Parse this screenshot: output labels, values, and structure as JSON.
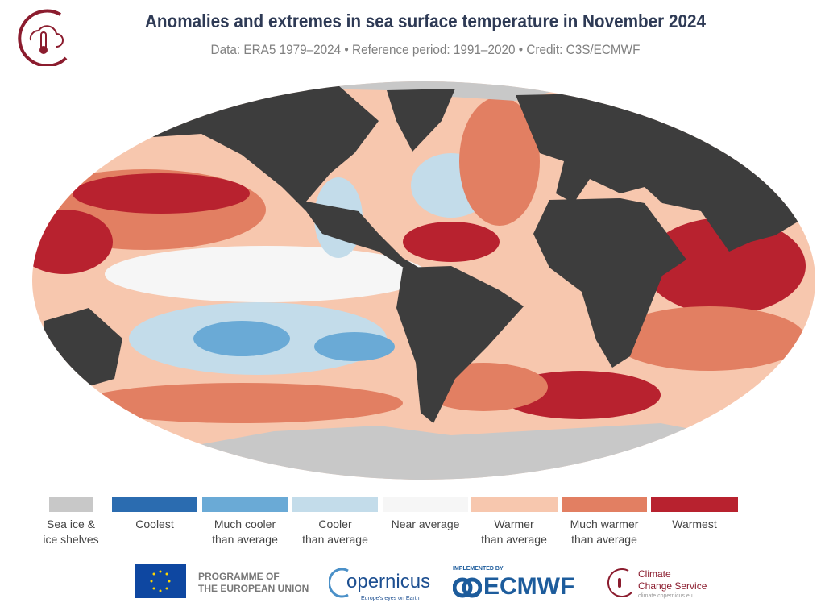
{
  "header": {
    "title": "Anomalies and extremes in sea surface temperature in November 2024",
    "subtitle": "Data: ERA5 1979–2024 • Reference period: 1991–2020 • Credit: C3S/ECMWF"
  },
  "legend": [
    {
      "label1": "Sea ice &",
      "label2": "ice shelves",
      "color": "#c8c8c8"
    },
    {
      "label1": "Coolest",
      "label2": "",
      "color": "#2b6cb0"
    },
    {
      "label1": "Much cooler",
      "label2": "than average",
      "color": "#6aaad6"
    },
    {
      "label1": "Cooler",
      "label2": "than average",
      "color": "#c3dcea"
    },
    {
      "label1": "Near average",
      "label2": "",
      "color": "#f6f6f6"
    },
    {
      "label1": "Warmer",
      "label2": "than average",
      "color": "#f7c7ae"
    },
    {
      "label1": "Much warmer",
      "label2": "than average",
      "color": "#e27f62"
    },
    {
      "label1": "Warmest",
      "label2": "",
      "color": "#b8222f"
    }
  ],
  "footer": {
    "eu": "PROGRAMME OF",
    "eu2": "THE EUROPEAN UNION",
    "copernicus": "opernicus",
    "copernicus_tag": "Europe's eyes on Earth",
    "implemented": "IMPLEMENTED BY",
    "ecmwf": "ECMWF",
    "c3s1": "Climate",
    "c3s2": "Change Service",
    "c3s_url": "climate.copernicus.eu"
  },
  "colors": {
    "land": "#3d3d3d",
    "ice": "#c8c8c8",
    "brand": "#8b1c2e"
  }
}
